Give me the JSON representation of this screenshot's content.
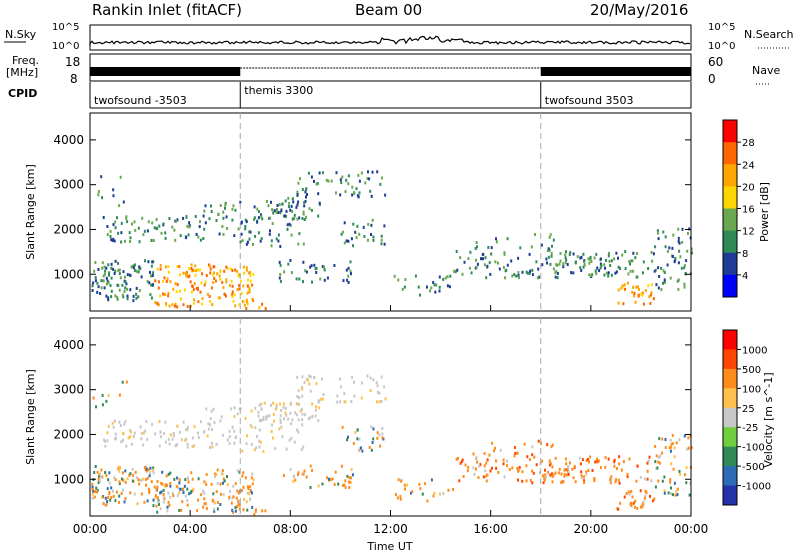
{
  "header": {
    "radar": "Rankin Inlet (fitACF)",
    "beam": "Beam 00",
    "date": "20/May/2016"
  },
  "chart_data": [
    {
      "type": "line",
      "panel": "noise",
      "left_label": "N.Sky",
      "right_label": "N.Search",
      "left_ticks": [
        "10^5",
        "10^0"
      ],
      "right_ticks": [
        "10^5",
        "10^0"
      ],
      "yscale": "log",
      "ylim_exponent": [
        0,
        5
      ]
    },
    {
      "type": "line",
      "panel": "frequency-nave",
      "left_label_top": "Freq.",
      "left_label_bottom": "[MHz]",
      "right_label": "Nave",
      "left_ticks": [
        "18",
        "8"
      ],
      "right_ticks": [
        "60",
        "0"
      ],
      "ylim_left": [
        8,
        18
      ],
      "ylim_right": [
        0,
        60
      ]
    },
    {
      "type": "table",
      "panel": "cpid",
      "label": "CPID",
      "segments": [
        {
          "start_hour": 0,
          "name": "twofsound -3503"
        },
        {
          "start_hour": 6,
          "name": "themis 3300"
        },
        {
          "start_hour": 18,
          "name": "twofsound 3503"
        }
      ]
    },
    {
      "type": "heatmap",
      "panel": "power",
      "ylabel": "Slant Range [km]",
      "yticks": [
        1000,
        2000,
        3000,
        4000
      ],
      "ylim": [
        180,
        4600
      ],
      "xlim_hours": [
        0,
        24
      ],
      "colorbar_label": "Power [dB]",
      "colorbar_ticks": [
        "28",
        "24",
        "20",
        "16",
        "12",
        "8",
        "4"
      ],
      "colorbar_range": [
        0,
        30
      ],
      "colorbar_colors": [
        "#0000ff",
        "#1e3c96",
        "#2e8b57",
        "#6aa84f",
        "#ffd700",
        "#ffa500",
        "#ff6600",
        "#ff0000"
      ]
    },
    {
      "type": "heatmap",
      "panel": "velocity",
      "ylabel": "Slant Range [km]",
      "yticks": [
        1000,
        2000,
        3000,
        4000
      ],
      "ylim": [
        180,
        4600
      ],
      "xlim_hours": [
        0,
        24
      ],
      "colorbar_label": "Velocity [m s^-1]",
      "colorbar_ticks": [
        "1000",
        "500",
        "100",
        "25",
        "-25",
        "-100",
        "-500",
        "-1000"
      ],
      "colorbar_colors": [
        "#2233aa",
        "#2e6bb5",
        "#2e8b57",
        "#6fcf3f",
        "#c8c8c8",
        "#ffc04d",
        "#ff8c1a",
        "#ff4500",
        "#ff0000"
      ]
    }
  ],
  "xaxis": {
    "ticks": [
      "00:00",
      "04:00",
      "08:00",
      "12:00",
      "16:00",
      "20:00",
      "00:00"
    ],
    "label": "Time UT"
  }
}
